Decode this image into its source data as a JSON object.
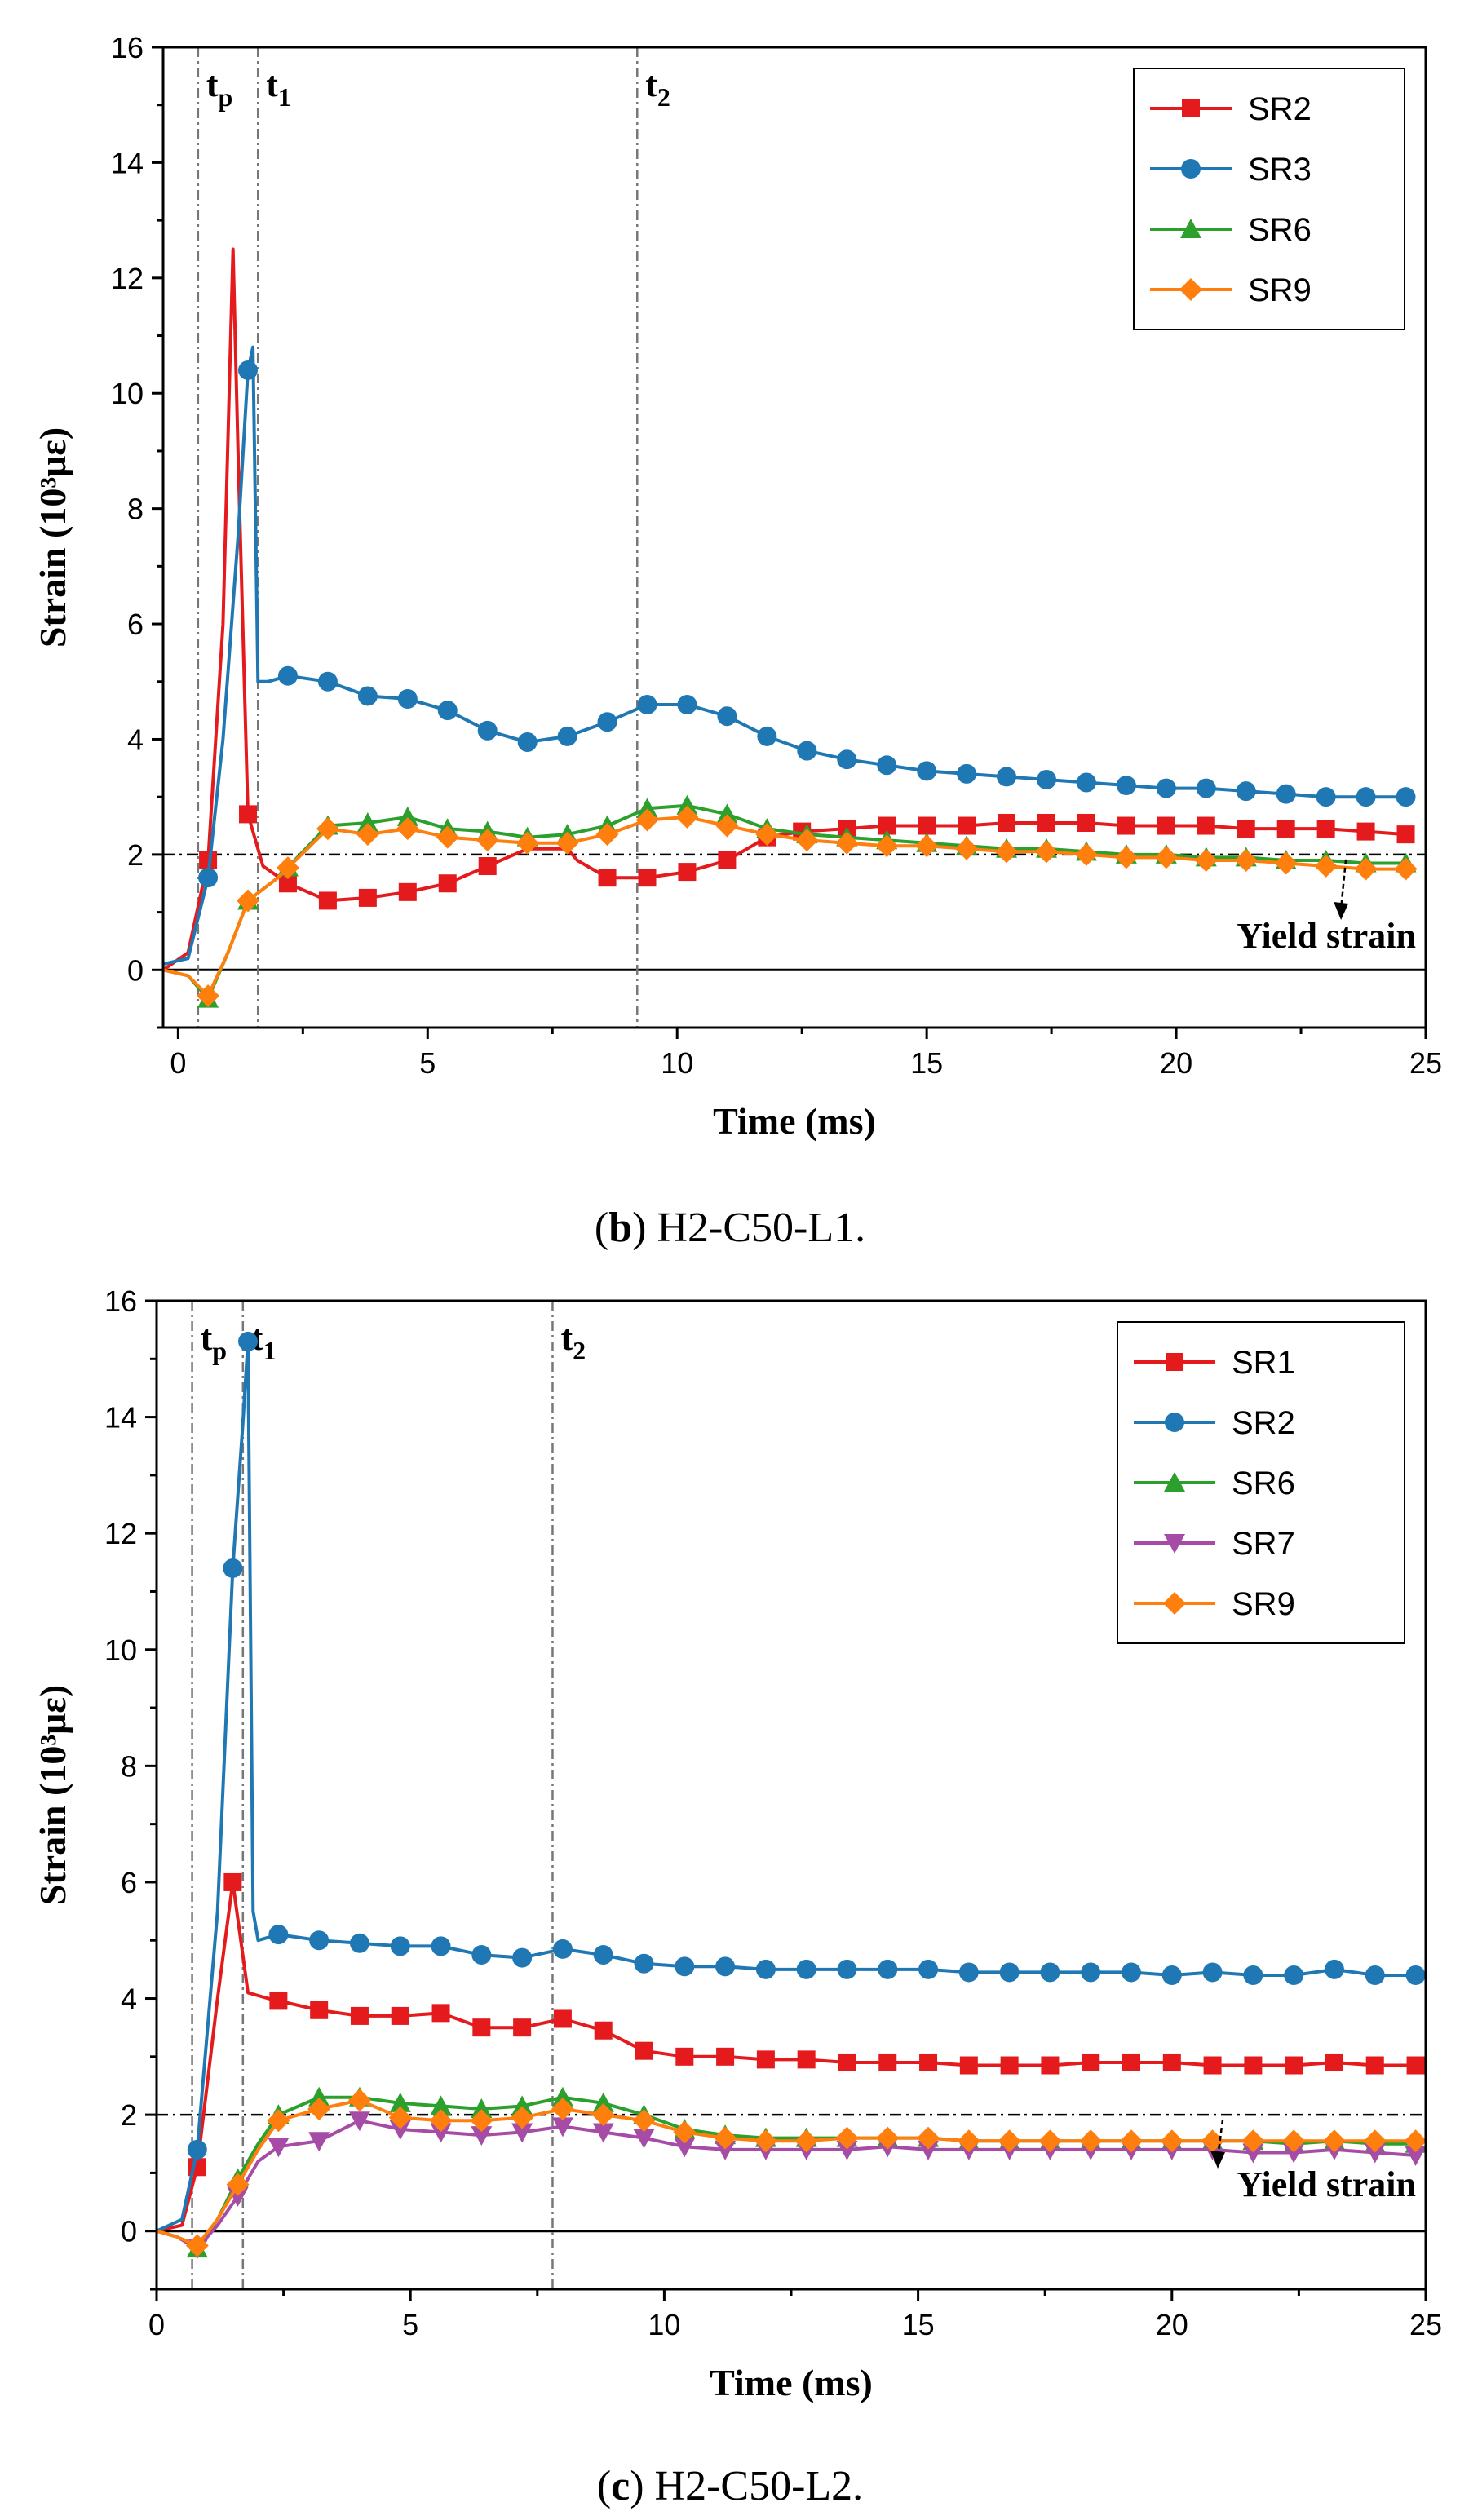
{
  "chart_data": [
    {
      "type": "line",
      "panel": "b",
      "caption_letter": "b",
      "caption_text": "H2-C50-L1.",
      "xlabel": "Time (ms)",
      "ylabel": "Strain (10³με)",
      "xlim": [
        -0.3,
        25
      ],
      "ylim": [
        -1,
        16
      ],
      "xticks": [
        0,
        5,
        10,
        15,
        20,
        25
      ],
      "yticks": [
        0,
        2,
        4,
        6,
        8,
        10,
        12,
        14,
        16
      ],
      "yield_strain": 2,
      "yield_label": "Yield strain",
      "vlines": [
        {
          "name": "tp",
          "base": "t",
          "sub": "p",
          "x": 0.4
        },
        {
          "name": "t1",
          "base": "t",
          "sub": "1",
          "x": 1.6
        },
        {
          "name": "t2",
          "base": "t",
          "sub": "2",
          "x": 9.2
        }
      ],
      "legend_position": "top-right",
      "series": [
        {
          "name": "SR2",
          "color": "#e41a1c",
          "marker": "square",
          "x": [
            -0.3,
            0.2,
            0.6,
            0.9,
            1.1,
            1.2,
            1.4,
            1.7,
            2.2,
            3.0,
            3.8,
            4.6,
            5.4,
            6.2,
            7.0,
            7.8,
            8.0,
            8.6,
            9.4,
            10.2,
            11.0,
            11.8,
            12.5,
            13.4,
            14.2,
            15.0,
            15.8,
            16.6,
            17.4,
            18.2,
            19.0,
            19.8,
            20.6,
            21.4,
            22.2,
            23.0,
            23.8,
            24.6
          ],
          "y": [
            0.0,
            0.3,
            1.9,
            6.0,
            12.5,
            9.0,
            2.7,
            1.8,
            1.5,
            1.2,
            1.25,
            1.35,
            1.5,
            1.8,
            2.1,
            2.1,
            1.9,
            1.6,
            1.6,
            1.7,
            1.9,
            2.3,
            2.4,
            2.45,
            2.5,
            2.5,
            2.5,
            2.55,
            2.55,
            2.55,
            2.5,
            2.5,
            2.5,
            2.45,
            2.45,
            2.45,
            2.4,
            2.35
          ],
          "marker_x": [
            0.6,
            1.4,
            2.2,
            3.0,
            3.8,
            4.6,
            5.4,
            6.2,
            8.6,
            9.4,
            10.2,
            11.0,
            11.8,
            12.5,
            13.4,
            14.2,
            15.0,
            15.8,
            16.6,
            17.4,
            18.2,
            19.0,
            19.8,
            20.6,
            21.4,
            22.2,
            23.0,
            23.8,
            24.6
          ]
        },
        {
          "name": "SR3",
          "color": "#1f78b4",
          "marker": "circle",
          "x": [
            -0.3,
            0.2,
            0.6,
            0.9,
            1.2,
            1.4,
            1.5,
            1.6,
            1.8,
            2.2,
            3.0,
            3.8,
            4.6,
            5.4,
            6.2,
            7.0,
            7.8,
            8.6,
            9.4,
            10.2,
            11.0,
            11.8,
            12.6,
            13.4,
            14.2,
            15.0,
            15.8,
            16.6,
            17.4,
            18.2,
            19.0,
            19.8,
            20.6,
            21.4,
            22.2,
            23.0,
            23.8,
            24.6
          ],
          "y": [
            0.1,
            0.2,
            1.6,
            4.0,
            7.5,
            10.4,
            10.8,
            5.0,
            5.0,
            5.1,
            5.0,
            4.75,
            4.7,
            4.5,
            4.15,
            3.95,
            4.05,
            4.3,
            4.6,
            4.6,
            4.4,
            4.05,
            3.8,
            3.65,
            3.55,
            3.45,
            3.4,
            3.35,
            3.3,
            3.25,
            3.2,
            3.15,
            3.15,
            3.1,
            3.05,
            3.0,
            3.0,
            3.0
          ],
          "marker_x": [
            0.6,
            1.4,
            2.2,
            3.0,
            3.8,
            4.6,
            5.4,
            6.2,
            7.0,
            7.8,
            8.6,
            9.4,
            10.2,
            11.0,
            11.8,
            12.6,
            13.4,
            14.2,
            15.0,
            15.8,
            16.6,
            17.4,
            18.2,
            19.0,
            19.8,
            20.6,
            21.4,
            22.2,
            23.0,
            23.8,
            24.6
          ]
        },
        {
          "name": "SR6",
          "color": "#2ca02c",
          "marker": "triangle-up",
          "x": [
            -0.3,
            0.2,
            0.6,
            1.0,
            1.4,
            2.0,
            3.0,
            3.8,
            4.6,
            5.4,
            6.2,
            7.0,
            7.8,
            8.6,
            9.4,
            10.2,
            11.0,
            11.8,
            12.6,
            13.4,
            14.2,
            15.0,
            15.8,
            16.6,
            17.4,
            18.2,
            19.0,
            19.8,
            20.6,
            21.4,
            22.2,
            23.0,
            23.8,
            24.6
          ],
          "y": [
            0.0,
            -0.1,
            -0.5,
            0.3,
            1.2,
            1.6,
            2.5,
            2.55,
            2.65,
            2.45,
            2.4,
            2.3,
            2.35,
            2.5,
            2.8,
            2.85,
            2.7,
            2.45,
            2.35,
            2.3,
            2.25,
            2.2,
            2.15,
            2.1,
            2.1,
            2.05,
            2.0,
            2.0,
            1.95,
            1.95,
            1.9,
            1.9,
            1.85,
            1.85
          ],
          "marker_x": [
            0.6,
            1.4,
            2.2,
            3.0,
            3.8,
            4.6,
            5.4,
            6.2,
            7.0,
            7.8,
            8.6,
            9.4,
            10.2,
            11.0,
            11.8,
            12.6,
            13.4,
            14.2,
            15.0,
            15.8,
            16.6,
            17.4,
            18.2,
            19.0,
            19.8,
            20.6,
            21.4,
            22.2,
            23.0,
            23.8,
            24.6
          ]
        },
        {
          "name": "SR9",
          "color": "#ff7f0e",
          "marker": "diamond",
          "x": [
            -0.3,
            0.2,
            0.6,
            1.0,
            1.4,
            2.0,
            3.0,
            3.8,
            4.6,
            5.4,
            6.2,
            7.0,
            7.8,
            8.6,
            9.4,
            10.2,
            11.0,
            11.8,
            12.6,
            13.4,
            14.2,
            15.0,
            15.8,
            16.6,
            17.4,
            18.2,
            19.0,
            19.8,
            20.6,
            21.4,
            22.2,
            23.0,
            23.8,
            24.6
          ],
          "y": [
            0.0,
            -0.1,
            -0.45,
            0.3,
            1.2,
            1.6,
            2.45,
            2.35,
            2.45,
            2.3,
            2.25,
            2.2,
            2.2,
            2.35,
            2.6,
            2.65,
            2.5,
            2.35,
            2.25,
            2.2,
            2.15,
            2.15,
            2.1,
            2.05,
            2.05,
            2.0,
            1.95,
            1.95,
            1.9,
            1.9,
            1.85,
            1.8,
            1.75,
            1.75
          ],
          "marker_x": [
            0.6,
            1.4,
            2.2,
            3.0,
            3.8,
            4.6,
            5.4,
            6.2,
            7.0,
            7.8,
            8.6,
            9.4,
            10.2,
            11.0,
            11.8,
            12.6,
            13.4,
            14.2,
            15.0,
            15.8,
            16.6,
            17.4,
            18.2,
            19.0,
            19.8,
            20.6,
            21.4,
            22.2,
            23.0,
            23.8,
            24.6
          ]
        }
      ]
    },
    {
      "type": "line",
      "panel": "c",
      "caption_letter": "c",
      "caption_text": "H2-C50-L2.",
      "xlabel": "Time (ms)",
      "ylabel": "Strain (10³με)",
      "xlim": [
        0,
        25
      ],
      "ylim": [
        -1,
        16
      ],
      "xticks": [
        0,
        5,
        10,
        15,
        20,
        25
      ],
      "yticks": [
        0,
        2,
        4,
        6,
        8,
        10,
        12,
        14,
        16
      ],
      "yield_strain": 2,
      "yield_label": "Yield strain",
      "vlines": [
        {
          "name": "tp",
          "base": "t",
          "sub": "p",
          "x": 0.7
        },
        {
          "name": "t1",
          "base": "t",
          "sub": "1",
          "x": 1.7
        },
        {
          "name": "t2",
          "base": "t",
          "sub": "2",
          "x": 7.8
        }
      ],
      "legend_position": "top-right",
      "series": [
        {
          "name": "SR1",
          "color": "#e41a1c",
          "marker": "square",
          "x": [
            0.0,
            0.5,
            0.8,
            1.2,
            1.5,
            1.8,
            2.2,
            3.2,
            4.0,
            4.8,
            5.6,
            6.4,
            7.2,
            8.0,
            8.8,
            9.6,
            10.4,
            11.2,
            12.0,
            12.8,
            13.6,
            14.4,
            15.2,
            16.0,
            16.8,
            17.6,
            18.4,
            19.2,
            20.0,
            20.8,
            21.6,
            22.4,
            23.2,
            24.0,
            24.8
          ],
          "y": [
            0.0,
            0.1,
            1.1,
            4.0,
            6.0,
            4.1,
            4.0,
            3.8,
            3.7,
            3.7,
            3.75,
            3.5,
            3.5,
            3.65,
            3.45,
            3.1,
            3.0,
            3.0,
            2.95,
            2.95,
            2.9,
            2.9,
            2.9,
            2.85,
            2.85,
            2.85,
            2.9,
            2.9,
            2.9,
            2.85,
            2.85,
            2.85,
            2.9,
            2.85,
            2.85
          ],
          "marker_x": [
            0.8,
            1.5,
            2.4,
            3.2,
            4.0,
            4.8,
            5.6,
            6.4,
            7.2,
            8.0,
            8.8,
            9.6,
            10.4,
            11.2,
            12.0,
            12.8,
            13.6,
            14.4,
            15.2,
            16.0,
            16.8,
            17.6,
            18.4,
            19.2,
            20.0,
            20.8,
            21.6,
            22.4,
            23.2,
            24.0,
            24.8
          ]
        },
        {
          "name": "SR2",
          "color": "#1f78b4",
          "marker": "circle",
          "x": [
            0.0,
            0.5,
            0.8,
            1.2,
            1.5,
            1.7,
            1.8,
            1.9,
            2.0,
            2.4,
            3.2,
            4.0,
            4.8,
            5.6,
            6.4,
            7.2,
            8.0,
            8.8,
            9.6,
            10.4,
            11.2,
            12.0,
            12.8,
            13.6,
            14.4,
            15.2,
            16.0,
            16.8,
            17.6,
            18.4,
            19.2,
            20.0,
            20.8,
            21.6,
            22.4,
            23.2,
            24.0,
            24.8
          ],
          "y": [
            0.0,
            0.2,
            1.4,
            5.5,
            11.4,
            13.9,
            15.3,
            5.5,
            5.0,
            5.1,
            5.0,
            4.95,
            4.9,
            4.9,
            4.75,
            4.7,
            4.85,
            4.75,
            4.6,
            4.55,
            4.55,
            4.5,
            4.5,
            4.5,
            4.5,
            4.5,
            4.45,
            4.45,
            4.45,
            4.45,
            4.45,
            4.4,
            4.45,
            4.4,
            4.4,
            4.5,
            4.4,
            4.4
          ],
          "marker_x": [
            0.8,
            1.5,
            1.8,
            2.4,
            3.2,
            4.0,
            4.8,
            5.6,
            6.4,
            7.2,
            8.0,
            8.8,
            9.6,
            10.4,
            11.2,
            12.0,
            12.8,
            13.6,
            14.4,
            15.2,
            16.0,
            16.8,
            17.6,
            18.4,
            19.2,
            20.0,
            20.8,
            21.6,
            22.4,
            23.2,
            24.0,
            24.8
          ]
        },
        {
          "name": "SR6",
          "color": "#2ca02c",
          "marker": "triangle-up",
          "x": [
            0.0,
            0.4,
            0.8,
            1.2,
            1.6,
            2.0,
            2.4,
            3.2,
            4.0,
            4.8,
            5.6,
            6.4,
            7.2,
            8.0,
            8.8,
            9.6,
            10.4,
            11.2,
            12.0,
            12.8,
            13.6,
            14.4,
            15.2,
            16.0,
            16.8,
            17.6,
            18.4,
            19.2,
            20.0,
            20.8,
            21.6,
            22.4,
            23.2,
            24.0,
            24.8
          ],
          "y": [
            0.0,
            -0.1,
            -0.3,
            0.2,
            0.9,
            1.5,
            2.0,
            2.3,
            2.3,
            2.2,
            2.15,
            2.1,
            2.15,
            2.3,
            2.2,
            2.0,
            1.75,
            1.65,
            1.6,
            1.6,
            1.6,
            1.6,
            1.6,
            1.55,
            1.55,
            1.55,
            1.55,
            1.55,
            1.55,
            1.55,
            1.55,
            1.5,
            1.55,
            1.5,
            1.5
          ],
          "marker_x": [
            0.8,
            1.6,
            2.4,
            3.2,
            4.0,
            4.8,
            5.6,
            6.4,
            7.2,
            8.0,
            8.8,
            9.6,
            10.4,
            11.2,
            12.0,
            12.8,
            13.6,
            14.4,
            15.2,
            16.0,
            16.8,
            17.6,
            18.4,
            19.2,
            20.0,
            20.8,
            21.6,
            22.4,
            23.2,
            24.0,
            24.8
          ]
        },
        {
          "name": "SR7",
          "color": "#a64ca6",
          "marker": "triangle-down",
          "x": [
            0.0,
            0.4,
            0.8,
            1.2,
            1.6,
            2.0,
            2.4,
            3.2,
            4.0,
            4.8,
            5.6,
            6.4,
            7.2,
            8.0,
            8.8,
            9.6,
            10.4,
            11.2,
            12.0,
            12.8,
            13.6,
            14.4,
            15.2,
            16.0,
            16.8,
            17.6,
            18.4,
            19.2,
            20.0,
            20.8,
            21.6,
            22.4,
            23.2,
            24.0,
            24.8
          ],
          "y": [
            0.0,
            -0.1,
            -0.3,
            0.1,
            0.6,
            1.2,
            1.45,
            1.55,
            1.9,
            1.75,
            1.7,
            1.65,
            1.7,
            1.8,
            1.7,
            1.6,
            1.45,
            1.4,
            1.4,
            1.4,
            1.4,
            1.45,
            1.4,
            1.4,
            1.4,
            1.4,
            1.4,
            1.4,
            1.4,
            1.4,
            1.35,
            1.35,
            1.4,
            1.35,
            1.3
          ],
          "marker_x": [
            0.8,
            1.6,
            2.4,
            3.2,
            4.0,
            4.8,
            5.6,
            6.4,
            7.2,
            8.0,
            8.8,
            9.6,
            10.4,
            11.2,
            12.0,
            12.8,
            13.6,
            14.4,
            15.2,
            16.0,
            16.8,
            17.6,
            18.4,
            19.2,
            20.0,
            20.8,
            21.6,
            22.4,
            23.2,
            24.0,
            24.8
          ]
        },
        {
          "name": "SR9",
          "color": "#ff7f0e",
          "marker": "diamond",
          "x": [
            0.0,
            0.4,
            0.8,
            1.2,
            1.6,
            2.0,
            2.4,
            3.2,
            4.0,
            4.8,
            5.6,
            6.4,
            7.2,
            8.0,
            8.8,
            9.6,
            10.4,
            11.2,
            12.0,
            12.8,
            13.6,
            14.4,
            15.2,
            16.0,
            16.8,
            17.6,
            18.4,
            19.2,
            20.0,
            20.8,
            21.6,
            22.4,
            23.2,
            24.0,
            24.8
          ],
          "y": [
            0.0,
            -0.1,
            -0.25,
            0.2,
            0.8,
            1.4,
            1.9,
            2.1,
            2.25,
            1.95,
            1.9,
            1.9,
            1.95,
            2.1,
            2.0,
            1.9,
            1.7,
            1.6,
            1.55,
            1.55,
            1.6,
            1.6,
            1.6,
            1.55,
            1.55,
            1.55,
            1.55,
            1.55,
            1.55,
            1.55,
            1.55,
            1.55,
            1.55,
            1.55,
            1.55
          ],
          "marker_x": [
            0.8,
            1.6,
            2.4,
            3.2,
            4.0,
            4.8,
            5.6,
            6.4,
            7.2,
            8.0,
            8.8,
            9.6,
            10.4,
            11.2,
            12.0,
            12.8,
            13.6,
            14.4,
            15.2,
            16.0,
            16.8,
            17.6,
            18.4,
            19.2,
            20.0,
            20.8,
            21.6,
            22.4,
            23.2,
            24.0,
            24.8
          ]
        }
      ]
    }
  ]
}
